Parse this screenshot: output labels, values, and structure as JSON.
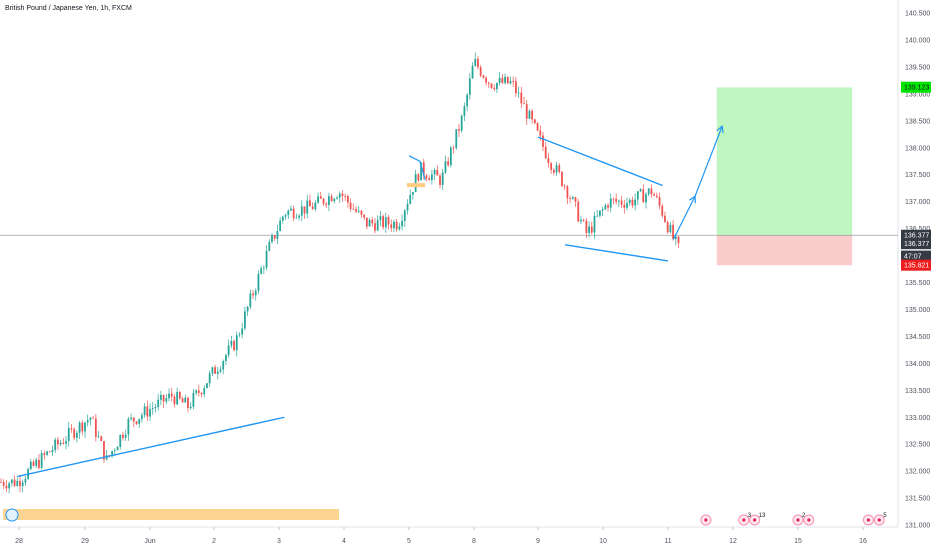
{
  "header": {
    "symbol_title": "British Pound / Japanese Yen, 1h, FXCM"
  },
  "colors": {
    "up": "#26a69a",
    "down": "#ef5350",
    "line": "#2196f3",
    "grid_zero": "#9e9e9e",
    "axis_text": "#50535e",
    "target_fill": "#b9f6b9",
    "stop_fill": "#f9c6c6",
    "badge_green": "#00e600",
    "badge_red": "#ef1e1e",
    "badge_dark": "#363a45",
    "highlight": "#ffcc80"
  },
  "chart_data": {
    "type": "candlestick",
    "ylim": [
      130.9,
      140.7
    ],
    "y_ticks": [
      "140.500",
      "140.000",
      "139.500",
      "139.000",
      "138.500",
      "138.000",
      "137.500",
      "137.000",
      "136.500",
      "136.000",
      "135.500",
      "135.000",
      "134.500",
      "134.000",
      "133.500",
      "133.000",
      "132.500",
      "132.000",
      "131.500",
      "131.000"
    ],
    "x_ticks": [
      "28",
      "29",
      "Jun",
      "2",
      "3",
      "4",
      "5",
      "8",
      "9",
      "10",
      "11",
      "12",
      "15",
      "16"
    ],
    "trend": [
      [
        "27 May 20:00",
        131.8
      ],
      [
        "28 May 12:00",
        132.4
      ],
      [
        "29 May 02:00",
        133.0
      ],
      [
        "29 May 08:00",
        132.2
      ],
      [
        "29 May 16:00",
        132.9
      ],
      [
        "1 Jun 08:00",
        133.4
      ],
      [
        "1 Jun 14:00",
        133.2
      ],
      [
        "2 Jun 08:00",
        134.4
      ],
      [
        "2 Jun 20:00",
        136.1
      ],
      [
        "3 Jun 02:00",
        136.8
      ],
      [
        "3 Jun 12:00",
        136.9
      ],
      [
        "3 Jun 22:00",
        137.2
      ],
      [
        "4 Jun 08:00",
        136.6
      ],
      [
        "4 Jun 20:00",
        136.6
      ],
      [
        "5 Jun 04:00",
        137.6
      ],
      [
        "5 Jun 12:00",
        137.4
      ],
      [
        "5 Jun 20:00",
        138.6
      ],
      [
        "8 Jun 00:00",
        139.6
      ],
      [
        "8 Jun 06:00",
        139.2
      ],
      [
        "8 Jun 14:00",
        139.2
      ],
      [
        "8 Jun 20:00",
        138.6
      ],
      [
        "9 Jun 04:00",
        137.8
      ],
      [
        "9 Jun 10:00",
        137.3
      ],
      [
        "9 Jun 18:00",
        136.4
      ],
      [
        "10 Jun 02:00",
        137.0
      ],
      [
        "10 Jun 10:00",
        137.0
      ],
      [
        "10 Jun 18:00",
        137.2
      ],
      [
        "10 Jun 22:00",
        136.8
      ],
      [
        "11 Jun 02:00",
        136.3
      ],
      [
        "11 Jun 04:00",
        136.1
      ]
    ],
    "annotations": {
      "trendline_start": [
        "27 May 20:00",
        131.9
      ],
      "trendline_end": [
        "3 Jun 02:00",
        133.0
      ],
      "wedge_upper_start": [
        "9 Jun 00:00",
        138.2
      ],
      "wedge_upper_end": [
        "10 Jun 22:00",
        137.3
      ],
      "wedge_lower_start": [
        "9 Jun 10:00",
        136.2
      ],
      "wedge_lower_end": [
        "11 Jun 00:00",
        135.9
      ],
      "flag_a": [
        "5 Jun 00:00",
        137.85
      ],
      "flag_b": [
        "5 Jun 04:00",
        137.75
      ],
      "flag_c": [
        "5 Jun 06:00",
        137.4
      ],
      "arrow_path": [
        [
          "11 Jun 02:00",
          136.3
        ],
        [
          "11 Jun 10:00",
          137.1
        ],
        [
          "11 Jun 20:00",
          138.4
        ]
      ],
      "target_zone": {
        "from": "11 Jun 18:00",
        "to": "15 Jun 20:00",
        "top": 139.12,
        "bottom": 136.377
      },
      "stop_zone": {
        "from": "11 Jun 18:00",
        "to": "15 Jun 20:00",
        "top": 136.377,
        "bottom": 135.82
      }
    },
    "price_badges": [
      {
        "label": "139.123",
        "value": 139.123,
        "kind": "green"
      },
      {
        "label": "136.377",
        "value": 136.377,
        "kind": "dark"
      },
      {
        "label": "136.377",
        "value": 136.22,
        "kind": "dark"
      },
      {
        "label": "47:07",
        "value": 135.99,
        "kind": "dark"
      },
      {
        "label": "135.821",
        "value": 135.821,
        "kind": "red"
      }
    ],
    "current_price": 136.377,
    "event_markers": [
      {
        "date": "11 Jun 14:00",
        "count": ""
      },
      {
        "date": "12 Jun 04:00",
        "count": "3"
      },
      {
        "date": "12 Jun 08:00",
        "count": "13"
      },
      {
        "date": "15 Jun 00:00",
        "count": "2"
      },
      {
        "date": "15 Jun 04:00",
        "count": ""
      },
      {
        "date": "16 Jun 02:00",
        "count": ""
      },
      {
        "date": "16 Jun 06:00",
        "count": "5"
      }
    ]
  }
}
